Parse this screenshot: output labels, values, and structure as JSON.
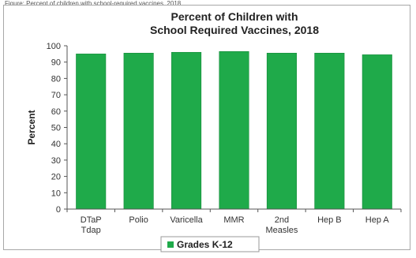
{
  "caption": "Figure: Percent of children with school-required vaccines, 2018",
  "chart_data": {
    "type": "bar",
    "title": [
      "Percent of Children with",
      "School Required Vaccines, 2018"
    ],
    "ylabel": "Percent",
    "xlabel": "",
    "ylim": [
      0,
      100
    ],
    "yticks": [
      0,
      10,
      20,
      30,
      40,
      50,
      60,
      70,
      80,
      90,
      100
    ],
    "grid": false,
    "legend_position": "bottom-center",
    "categories": [
      [
        "DTaP",
        "Tdap"
      ],
      [
        "Polio"
      ],
      [
        "Varicella"
      ],
      [
        "MMR"
      ],
      [
        "2nd",
        "Measles"
      ],
      [
        "Hep B"
      ],
      [
        "Hep A"
      ]
    ],
    "series": [
      {
        "name": "Grades K-12",
        "color": "#1faa4a",
        "values": [
          95,
          95.5,
          96,
          96.5,
          95.5,
          95.5,
          94.5
        ]
      }
    ]
  }
}
